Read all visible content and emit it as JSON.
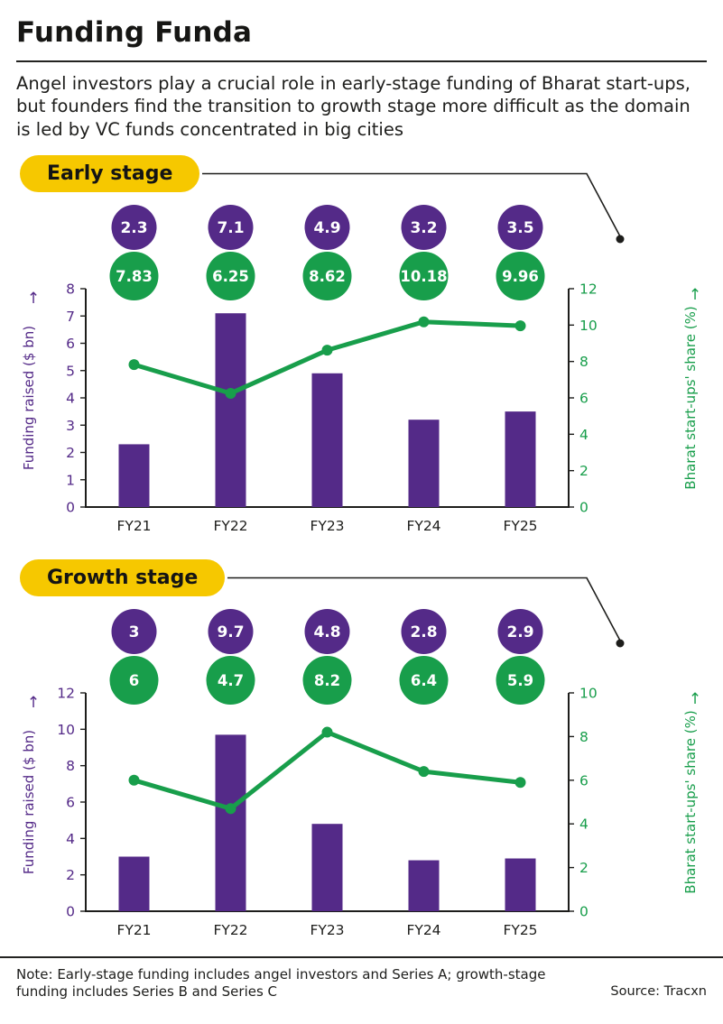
{
  "header": {
    "title": "Funding Funda",
    "subtitle": "Angel investors play a crucial role in early-stage funding of Bharat start-ups, but founders find the transition to growth stage more difficult as the domain is led by VC funds concentrated in big cities"
  },
  "colors": {
    "purple": "#542a88",
    "green": "#189e4b",
    "yellow": "#f6c800",
    "ink": "#1d1d1b"
  },
  "chart_data": [
    {
      "type": "combo_bar_line",
      "title": "Early stage",
      "categories": [
        "FY21",
        "FY22",
        "FY23",
        "FY24",
        "FY25"
      ],
      "series": [
        {
          "name": "Funding raised ($ bn)",
          "type": "bar",
          "axis": "left",
          "color": "purple",
          "values": [
            2.3,
            7.1,
            4.9,
            3.2,
            3.5
          ]
        },
        {
          "name": "Bharat start-ups' share (%)",
          "type": "line",
          "axis": "right",
          "color": "green",
          "values": [
            7.83,
            6.25,
            8.62,
            10.18,
            9.96
          ]
        }
      ],
      "left_axis": {
        "label": "Funding raised ($ bn)",
        "arrow": "↑",
        "min": 0,
        "max": 8,
        "ticks": [
          0,
          1,
          2,
          3,
          4,
          5,
          6,
          7,
          8
        ]
      },
      "right_axis": {
        "label": "Bharat start-ups' share (%)",
        "arrow": "↑",
        "min": 0,
        "max": 12,
        "ticks": [
          0,
          2,
          4,
          6,
          8,
          10,
          12
        ]
      },
      "grid": false,
      "legend_position": "none"
    },
    {
      "type": "combo_bar_line",
      "title": "Growth stage",
      "categories": [
        "FY21",
        "FY22",
        "FY23",
        "FY24",
        "FY25"
      ],
      "series": [
        {
          "name": "Funding raised ($ bn)",
          "type": "bar",
          "axis": "left",
          "color": "purple",
          "values": [
            3,
            9.7,
            4.8,
            2.8,
            2.9
          ]
        },
        {
          "name": "Bharat start-ups' share (%)",
          "type": "line",
          "axis": "right",
          "color": "green",
          "values": [
            6,
            4.7,
            8.2,
            6.4,
            5.9
          ]
        }
      ],
      "left_axis": {
        "label": "Funding raised ($ bn)",
        "arrow": "↑",
        "min": 0,
        "max": 12,
        "ticks": [
          0,
          2,
          4,
          6,
          8,
          10,
          12
        ]
      },
      "right_axis": {
        "label": "Bharat start-ups' share (%)",
        "arrow": "↑",
        "min": 0,
        "max": 10,
        "ticks": [
          0,
          2,
          4,
          6,
          8,
          10
        ]
      },
      "grid": false,
      "legend_position": "none"
    }
  ],
  "footer": {
    "note": "Note: Early-stage funding includes angel investors and Series A; growth-stage funding includes Series B and Series C",
    "source": "Source: Tracxn"
  }
}
